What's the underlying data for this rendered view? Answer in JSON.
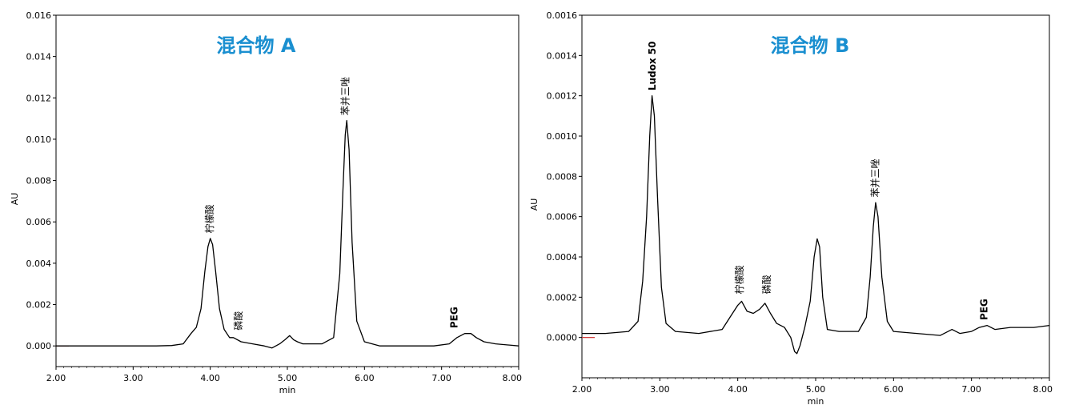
{
  "chart_data": [
    {
      "type": "line",
      "title": "混合物 A",
      "title_color": "#1a8fd0",
      "xlabel": "min",
      "ylabel": "AU",
      "xlim": [
        2.0,
        8.0
      ],
      "ylim": [
        -0.001,
        0.016
      ],
      "x_ticks": [
        2.0,
        3.0,
        4.0,
        5.0,
        6.0,
        7.0,
        8.0
      ],
      "x_tick_labels": [
        "2.00",
        "3.00",
        "4.00",
        "5.00",
        "6.00",
        "7.00",
        "8.00"
      ],
      "y_ticks": [
        0.0,
        0.002,
        0.004,
        0.006,
        0.008,
        0.01,
        0.012,
        0.014,
        0.016
      ],
      "y_tick_labels": [
        "0.000",
        "0.002",
        "0.004",
        "0.006",
        "0.008",
        "0.010",
        "0.012",
        "0.014",
        "0.016"
      ],
      "baseline_color": "#d03030",
      "series": [
        {
          "color": "#000000",
          "x": [
            2.0,
            2.5,
            3.0,
            3.3,
            3.5,
            3.65,
            3.75,
            3.82,
            3.88,
            3.93,
            3.97,
            4.0,
            4.03,
            4.07,
            4.12,
            4.18,
            4.25,
            4.3,
            4.4,
            4.55,
            4.7,
            4.8,
            4.9,
            4.97,
            5.03,
            5.08,
            5.13,
            5.2,
            5.3,
            5.45,
            5.6,
            5.68,
            5.72,
            5.75,
            5.77,
            5.8,
            5.84,
            5.9,
            6.0,
            6.2,
            6.5,
            6.9,
            7.1,
            7.2,
            7.3,
            7.38,
            7.45,
            7.55,
            7.7,
            8.0
          ],
          "y": [
            0.0,
            0.0,
            0.0,
            0.0,
            2e-05,
            0.0001,
            0.0006,
            0.0009,
            0.0018,
            0.0036,
            0.0048,
            0.0052,
            0.0049,
            0.0036,
            0.0018,
            0.0008,
            0.0004,
            0.0004,
            0.0002,
            0.0001,
            0.0,
            -0.0001,
            0.0001,
            0.0003,
            0.0005,
            0.0003,
            0.0002,
            0.0001,
            0.0001,
            0.0001,
            0.0004,
            0.0035,
            0.0075,
            0.0102,
            0.0109,
            0.0095,
            0.005,
            0.0012,
            0.0002,
            0.0,
            0.0,
            0.0,
            0.0001,
            0.0004,
            0.0006,
            0.0006,
            0.0004,
            0.0002,
            0.0001,
            0.0
          ]
        }
      ],
      "annotations": [
        {
          "text": "柠檬酸",
          "x": 4.0,
          "y": 0.0053,
          "bold": false
        },
        {
          "text": "磷酸",
          "x": 4.37,
          "y": 0.0006,
          "bold": false
        },
        {
          "text": "苯并三唑",
          "x": 5.76,
          "y": 0.011,
          "bold": false
        },
        {
          "text": "PEG",
          "x": 7.17,
          "y": 0.0007,
          "bold": true
        }
      ]
    },
    {
      "type": "line",
      "title": "混合物 B",
      "title_color": "#1a8fd0",
      "xlabel": "min",
      "ylabel": "AU",
      "xlim": [
        2.0,
        8.0
      ],
      "ylim": [
        -0.0002,
        0.0016
      ],
      "x_ticks": [
        2.0,
        3.0,
        4.0,
        5.0,
        6.0,
        7.0,
        8.0
      ],
      "x_tick_labels": [
        "2.00",
        "3.00",
        "4.00",
        "5.00",
        "6.00",
        "7.00",
        "8.00"
      ],
      "y_ticks": [
        0.0,
        0.0002,
        0.0004,
        0.0006,
        0.0008,
        0.001,
        0.0012,
        0.0014,
        0.0016
      ],
      "y_tick_labels": [
        "0.0000",
        "0.0002",
        "0.0004",
        "0.0006",
        "0.0008",
        "0.0010",
        "0.0012",
        "0.0014",
        "0.0016"
      ],
      "baseline_color": "#d03030",
      "series": [
        {
          "color": "#000000",
          "x": [
            2.0,
            2.3,
            2.6,
            2.72,
            2.78,
            2.83,
            2.87,
            2.9,
            2.93,
            2.97,
            3.02,
            3.08,
            3.2,
            3.5,
            3.8,
            3.9,
            4.0,
            4.05,
            4.12,
            4.2,
            4.28,
            4.35,
            4.42,
            4.5,
            4.6,
            4.68,
            4.73,
            4.76,
            4.8,
            4.86,
            4.93,
            4.98,
            5.02,
            5.05,
            5.09,
            5.15,
            5.3,
            5.55,
            5.65,
            5.7,
            5.74,
            5.77,
            5.8,
            5.85,
            5.92,
            6.0,
            6.3,
            6.6,
            6.7,
            6.75,
            6.85,
            7.0,
            7.1,
            7.2,
            7.3,
            7.5,
            7.8,
            8.0
          ],
          "y": [
            2e-05,
            2e-05,
            3e-05,
            8e-05,
            0.00028,
            0.0006,
            0.001,
            0.0012,
            0.0011,
            0.0007,
            0.00025,
            7e-05,
            3e-05,
            2e-05,
            4e-05,
            0.0001,
            0.00016,
            0.00018,
            0.00013,
            0.00012,
            0.00014,
            0.00017,
            0.00012,
            7e-05,
            5e-05,
            0.0,
            -7e-05,
            -8e-05,
            -4e-05,
            5e-05,
            0.00018,
            0.0004,
            0.00049,
            0.00045,
            0.0002,
            4e-05,
            3e-05,
            3e-05,
            0.0001,
            0.0003,
            0.00055,
            0.00067,
            0.0006,
            0.0003,
            8e-05,
            3e-05,
            2e-05,
            1e-05,
            3e-05,
            4e-05,
            2e-05,
            3e-05,
            5e-05,
            6e-05,
            4e-05,
            5e-05,
            5e-05,
            6e-05
          ]
        }
      ],
      "annotations": [
        {
          "text": "Ludox 50",
          "x": 2.91,
          "y": 0.00121,
          "bold": true
        },
        {
          "text": "柠檬酸",
          "x": 4.03,
          "y": 0.0002,
          "bold": false
        },
        {
          "text": "磷酸",
          "x": 4.38,
          "y": 0.0002,
          "bold": false
        },
        {
          "text": "苯并三唑",
          "x": 5.77,
          "y": 0.00068,
          "bold": false
        },
        {
          "text": "PEG",
          "x": 7.17,
          "y": 7e-05,
          "bold": true
        }
      ]
    }
  ]
}
